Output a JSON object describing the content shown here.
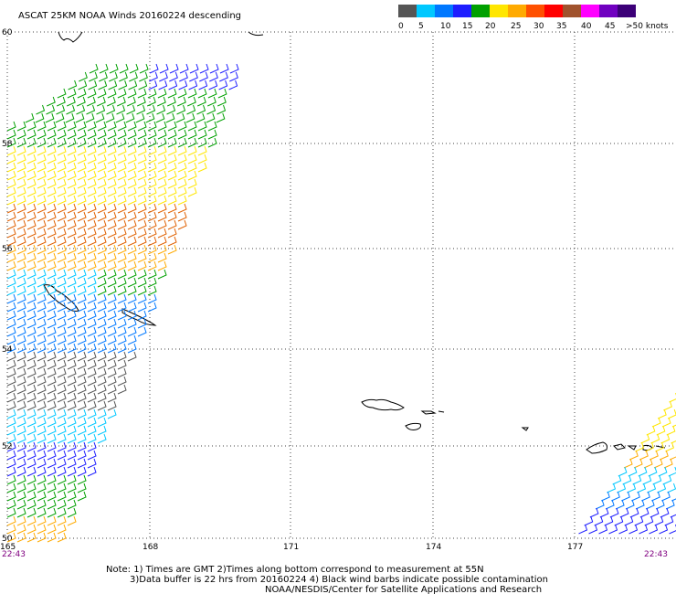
{
  "title": "ASCAT 25KM NOAA Winds 20160224 descending",
  "legend": {
    "labels": [
      "0",
      "5",
      "10",
      "15",
      "20",
      "25",
      "30",
      "35",
      "40",
      "45",
      ">50 knots"
    ],
    "colors": [
      "#555555",
      "#00c8ff",
      "#0078ff",
      "#1e1eff",
      "#00a000",
      "#ffe600",
      "#ffaa00",
      "#ff5000",
      "#ff0000",
      "#a0522d",
      "#ff00ff",
      "#7000c0",
      "#3c0078"
    ]
  },
  "lat_labels": [
    "60",
    "58",
    "56",
    "54",
    "52",
    "50"
  ],
  "lon_labels": [
    "165",
    "168",
    "171",
    "174",
    "177"
  ],
  "time_left": "22:43",
  "time_right": "22:43",
  "notes": [
    "Note:  1) Times are GMT  2)Times along bottom correspond to measurement at 55N",
    "3)Data buffer is 22 hrs from 20160224  4) Black wind barbs indicate possible contamination",
    "NOAA/NESDIS/Center for Satellite Applications and Research"
  ],
  "barb_colors": {
    "gray": "#555555",
    "cyan": "#00c8ff",
    "blue": "#0078ff",
    "navy": "#1e1eff",
    "green": "#00a000",
    "yellow": "#ffe600",
    "orange": "#ffaa00",
    "darkorange": "#e06000"
  }
}
